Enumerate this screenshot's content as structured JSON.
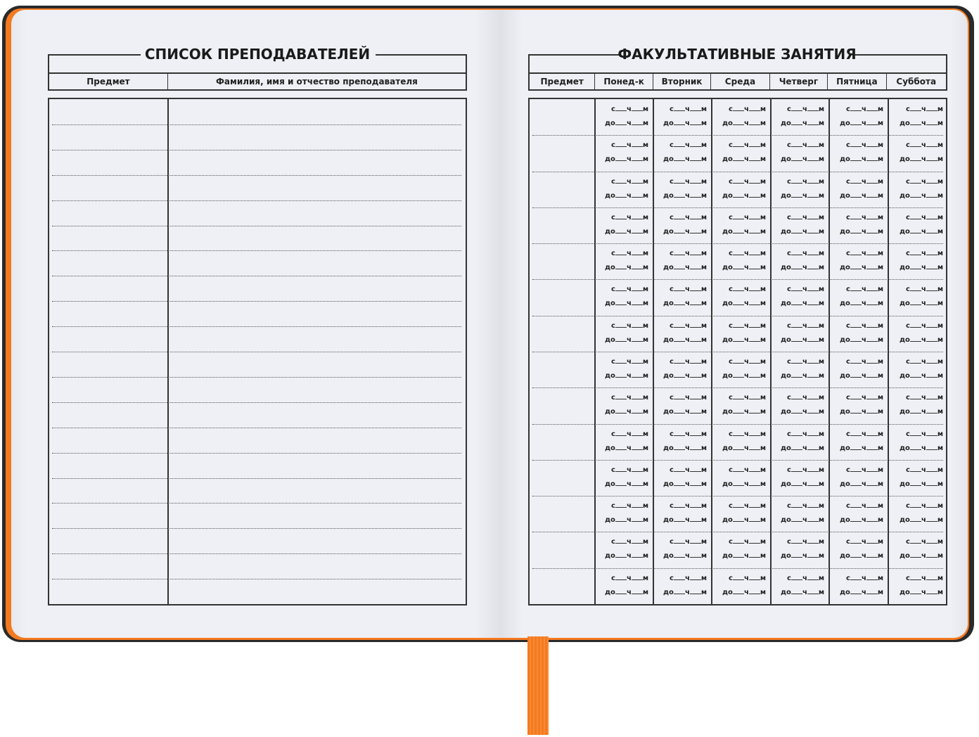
{
  "left_page": {
    "title": "СПИСОК ПРЕПОДАВАТЕЛЕЙ",
    "columns": [
      "Предмет",
      "Фамилия, имя и отчество преподавателя"
    ],
    "row_count": 20
  },
  "right_page": {
    "title": "ФАКУЛЬТАТИВНЫЕ ЗАНЯТИЯ",
    "columns": [
      "Предмет",
      "Понед-к",
      "Вторник",
      "Среда",
      "Четверг",
      "Пятница",
      "Суббота"
    ],
    "row_count": 14,
    "slot": {
      "from": "с",
      "to": "до",
      "hours": "ч",
      "minutes": "м"
    }
  },
  "colors": {
    "cover": "#2a2a2a",
    "edge": "#f47a20",
    "ribbon": "#f47a20",
    "paper": "#eef0f5"
  }
}
